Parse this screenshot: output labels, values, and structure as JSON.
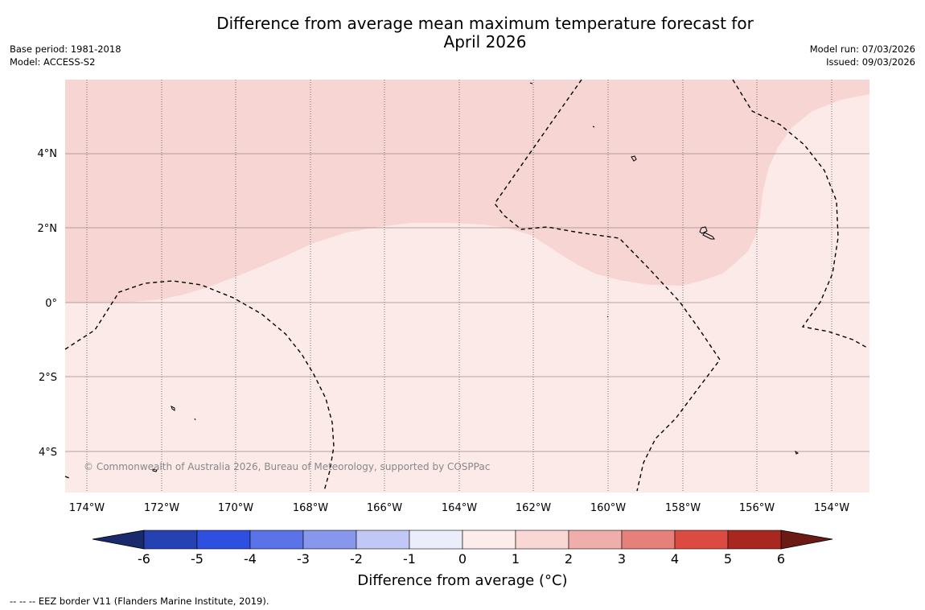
{
  "title": {
    "line1": "Difference from average mean maximum temperature forecast for",
    "line2": "April 2026"
  },
  "meta_left": {
    "base_period": "Base period: 1981-2018",
    "model": "Model: ACCESS-S2"
  },
  "meta_right": {
    "model_run": "Model run: 07/03/2026",
    "issued": "Issued: 09/03/2026"
  },
  "map": {
    "lon_labels": [
      "174°W",
      "172°W",
      "170°W",
      "168°W",
      "166°W",
      "164°W",
      "162°W",
      "160°W",
      "158°W",
      "156°W",
      "154°W"
    ],
    "lat_labels": [
      "4°N",
      "2°N",
      "0°",
      "2°S",
      "4°S"
    ],
    "copyright": "© Commonwealth of Australia 2026, Bureau of Meteorology, supported by COSPPac",
    "anomaly_1_to_2_color": "#f6d5d3",
    "anomaly_0_to_1_color": "#fbeae8"
  },
  "colorbar": {
    "ticks": [
      "-6",
      "-5",
      "-4",
      "-3",
      "-2",
      "-1",
      "0",
      "1",
      "2",
      "3",
      "4",
      "5",
      "6"
    ],
    "colors": [
      "#2541b2",
      "#2f4fe0",
      "#5a73e6",
      "#8797ec",
      "#c2c8f5",
      "#ebedfb",
      "#fcecea",
      "#f9d7d5",
      "#f0aeaa",
      "#e6807a",
      "#db4b42",
      "#a8271f"
    ],
    "under_color": "#1a2a6c",
    "over_color": "#6b1a14",
    "label": "Difference from average (°C)"
  },
  "footnote": "--  --  -- EEZ border V11 (Flanders Marine Institute, 2019)."
}
